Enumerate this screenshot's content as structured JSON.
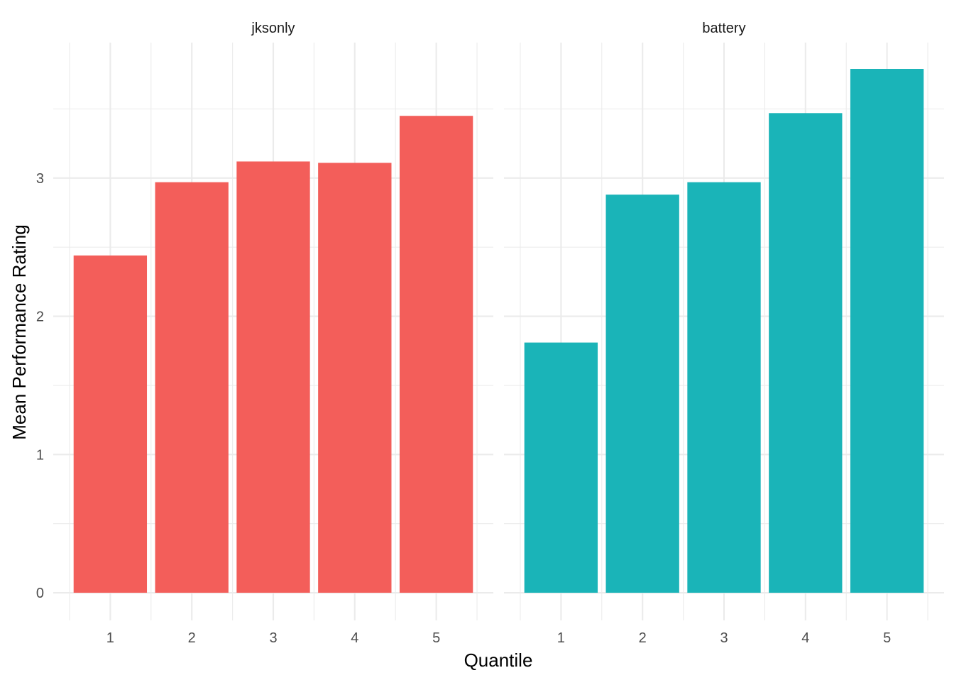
{
  "chart_data": {
    "type": "bar",
    "xlabel": "Quantile",
    "ylabel": "Mean Performance Rating",
    "categories": [
      "1",
      "2",
      "3",
      "4",
      "5"
    ],
    "ylim": [
      -0.2,
      3.98
    ],
    "y_ticks": [
      0,
      1,
      2,
      3
    ],
    "y_tick_labels": [
      "0",
      "1",
      "2",
      "3"
    ],
    "grid": true,
    "legend": "none",
    "panels": [
      {
        "name": "jksonly",
        "color": "#F35E5A",
        "values": [
          2.44,
          2.97,
          3.12,
          3.11,
          3.45
        ]
      },
      {
        "name": "battery",
        "color": "#1AB4B8",
        "values": [
          1.81,
          2.88,
          2.97,
          3.47,
          3.79
        ]
      }
    ]
  }
}
